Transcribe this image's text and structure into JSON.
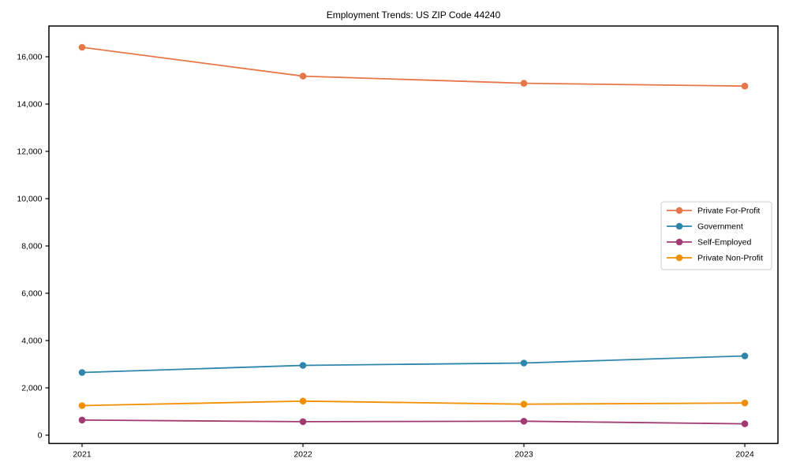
{
  "figure": {
    "title": "Employment Trends: US ZIP Code 44240",
    "background_color": "#ffffff",
    "text_color": "#000000"
  },
  "chart_data": {
    "type": "line",
    "title": "Employment Trends: US ZIP Code 44240",
    "x": [
      2021,
      2022,
      2023,
      2024
    ],
    "x_tick_labels": [
      "2021",
      "2022",
      "2023",
      "2024"
    ],
    "series": [
      {
        "name": "Private For-Profit",
        "color": "#e8764b",
        "values": [
          16400,
          15180,
          14880,
          14760
        ]
      },
      {
        "name": "Government",
        "color": "#2e86ab",
        "values": [
          2650,
          2950,
          3050,
          3350
        ]
      },
      {
        "name": "Self-Employed",
        "color": "#a23b72",
        "values": [
          640,
          570,
          590,
          480
        ]
      },
      {
        "name": "Private Non-Profit",
        "color": "#f18f01",
        "values": [
          1250,
          1440,
          1310,
          1360
        ]
      }
    ],
    "xlabel": "",
    "ylabel": "",
    "ylim": [
      -350,
      17300
    ],
    "yticks": [
      0,
      2000,
      4000,
      6000,
      8000,
      10000,
      12000,
      14000,
      16000
    ],
    "ytick_labels": [
      "0",
      "2,000",
      "4,000",
      "6,000",
      "8,000",
      "10,000",
      "12,000",
      "14,000",
      "16,000"
    ],
    "grid": false,
    "legend_position": "right-center",
    "marker": "circle",
    "legend_border_color": "#cccccc"
  }
}
